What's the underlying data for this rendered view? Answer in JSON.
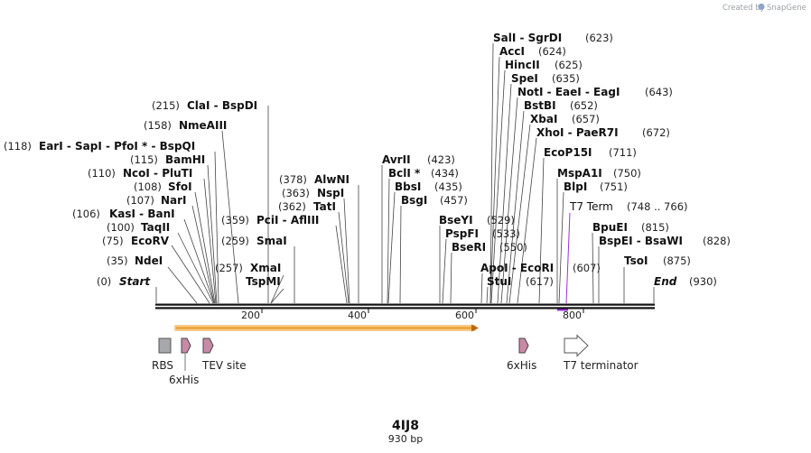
{
  "watermark": {
    "created_by": "Created by",
    "brand": "SnapGene"
  },
  "map": {
    "name": "4IJ8",
    "length_label": "930 bp",
    "start_label": "Start",
    "start_pos": "(0)",
    "end_label": "End",
    "end_pos": "(930)",
    "ticks": [
      "200",
      "400",
      "600",
      "800"
    ]
  },
  "sites": [
    {
      "label": "NdeI",
      "pos": "(35)",
      "side": "left"
    },
    {
      "label": "EcoRV",
      "pos": "(75)",
      "side": "left"
    },
    {
      "label": "TaqII",
      "pos": "(100)",
      "side": "left"
    },
    {
      "label": "KasI  -  BanI",
      "pos": "(106)",
      "side": "left"
    },
    {
      "label": "NarI",
      "pos": "(107)",
      "side": "left"
    },
    {
      "label": "SfoI",
      "pos": "(108)",
      "side": "left"
    },
    {
      "label": "NcoI  -  PluTI",
      "pos": "(110)",
      "side": "left"
    },
    {
      "label": "BamHI",
      "pos": "(115)",
      "side": "left"
    },
    {
      "label": "EarI  -  SapI  -  PfoI *  -  BspQI",
      "pos": "(118)",
      "side": "left"
    },
    {
      "label": "NmeAIII",
      "pos": "(158)",
      "side": "left"
    },
    {
      "label": "ClaI  -  BspDI",
      "pos": "(215)",
      "side": "left"
    },
    {
      "label": "XmaI",
      "pos": "(257)",
      "side": "left"
    },
    {
      "label": "TspMI",
      "pos": "",
      "side": "left"
    },
    {
      "label": "SmaI",
      "pos": "(259)",
      "side": "left"
    },
    {
      "label": "PciI  -  AflIII",
      "pos": "(359)",
      "side": "left"
    },
    {
      "label": "TatI",
      "pos": "(362)",
      "side": "left"
    },
    {
      "label": "NspI",
      "pos": "(363)",
      "side": "left"
    },
    {
      "label": "AlwNI",
      "pos": "(378)",
      "side": "left"
    },
    {
      "label": "AvrII",
      "pos": "(423)",
      "side": "right"
    },
    {
      "label": "BclI *",
      "pos": "(434)",
      "side": "right"
    },
    {
      "label": "BbsI",
      "pos": "(435)",
      "side": "right"
    },
    {
      "label": "BsgI",
      "pos": "(457)",
      "side": "right"
    },
    {
      "label": "BseYI",
      "pos": "(529)",
      "side": "right"
    },
    {
      "label": "PspFI",
      "pos": "(533)",
      "side": "right"
    },
    {
      "label": "BseRI",
      "pos": "(550)",
      "side": "right"
    },
    {
      "label": "ApoI  -  EcoRI",
      "pos": "(607)",
      "side": "right"
    },
    {
      "label": "StuI",
      "pos": "(617)",
      "side": "right"
    },
    {
      "label": "SalI  -  SgrDI",
      "pos": "(623)",
      "side": "right"
    },
    {
      "label": "AccI",
      "pos": "(624)",
      "side": "right"
    },
    {
      "label": "HincII",
      "pos": "(625)",
      "side": "right"
    },
    {
      "label": "SpeI",
      "pos": "(635)",
      "side": "right"
    },
    {
      "label": "NotI  -  EaeI  -  EagI",
      "pos": "(643)",
      "side": "right"
    },
    {
      "label": "BstBI",
      "pos": "(652)",
      "side": "right"
    },
    {
      "label": "XbaI",
      "pos": "(657)",
      "side": "right"
    },
    {
      "label": "XhoI  -  PaeR7I",
      "pos": "(672)",
      "side": "right"
    },
    {
      "label": "EcoP15I",
      "pos": "(711)",
      "side": "right"
    },
    {
      "label": "MspA1I",
      "pos": "(750)",
      "side": "right"
    },
    {
      "label": "BlpI",
      "pos": "(751)",
      "side": "right"
    },
    {
      "label": "BpuEI",
      "pos": "(815)",
      "side": "right"
    },
    {
      "label": "BspEI  -  BsaWI",
      "pos": "(828)",
      "side": "right"
    },
    {
      "label": "TsoI",
      "pos": "(875)",
      "side": "right"
    }
  ],
  "t7_term": {
    "label": "T7 Term",
    "range": "(748 .. 766)",
    "color": "#9b30d9"
  },
  "features": [
    {
      "name": "RBS",
      "type": "box",
      "color": "#a6a8ab"
    },
    {
      "name": "6xHis",
      "type": "arrow",
      "color": "#c98aa8"
    },
    {
      "name": "TEV site",
      "type": "arrow",
      "color": "#c98aa8"
    },
    {
      "name": "6xHis",
      "type": "arrow",
      "color": "#c98aa8"
    },
    {
      "name": "T7 terminator",
      "type": "arrow",
      "color": "#ffffff"
    }
  ],
  "colors": {
    "orf": "#f5a623",
    "orf_outline": "#f7c98a",
    "backbone": "#111111"
  }
}
